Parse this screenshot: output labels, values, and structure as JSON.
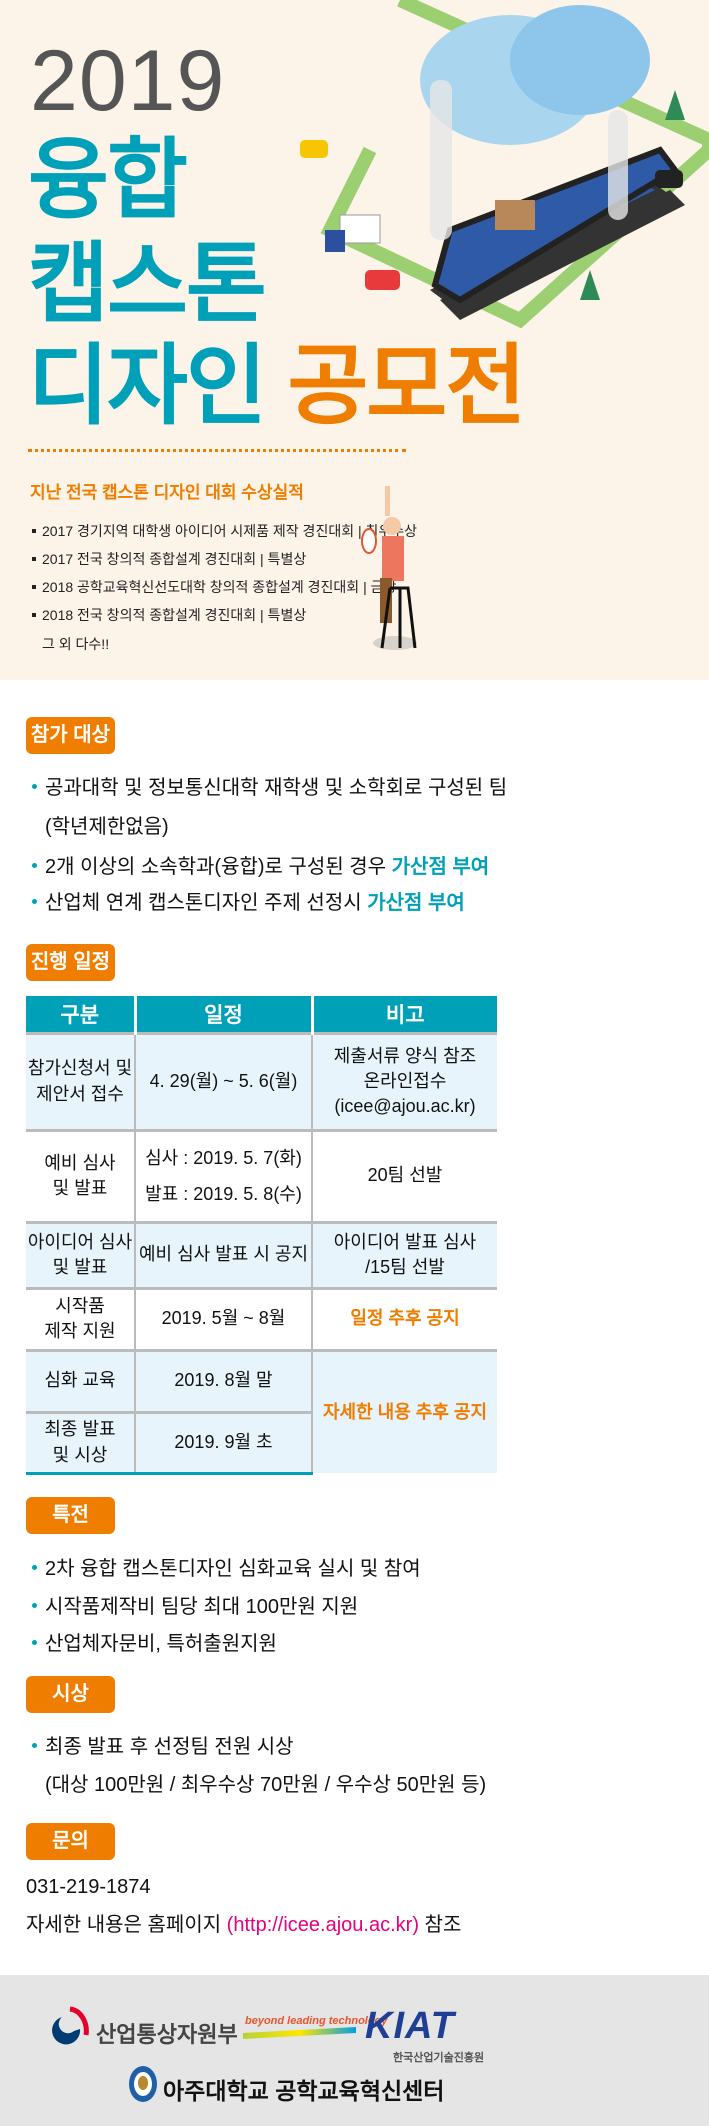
{
  "hero": {
    "year": "2019",
    "title_line1": "융합",
    "title_line2": "캡스톤",
    "title_line3_teal": "디자인",
    "title_line3_orange": "공모전"
  },
  "awards": {
    "heading": "지난 전국 캡스톤 디자인 대회 수상실적",
    "items": [
      "2017 경기지역 대학생 아이디어 시제품 제작 경진대회 | 최우수상",
      "2017 전국 창의적 종합설계 경진대회 | 특별상",
      "2018 공학교육혁신선도대학 창의적 종합설계 경진대회 | 금상",
      "2018 전국 창의적 종합설계 경진대회 | 특별상"
    ],
    "more": "그 외 다수!!"
  },
  "eligibility": {
    "badge": "참가 대상",
    "item1": "공과대학 및 정보통신대학 재학생 및 소학회로 구성된 팀",
    "item1_cont": "(학년제한없음)",
    "item2": "2개 이상의 소속학과(융합)로 구성된 경우 ",
    "item2_highlight": "가산점 부여",
    "item3": "산업체 연계 캡스톤디자인 주제 선정시 ",
    "item3_highlight": "가산점 부여"
  },
  "schedule": {
    "badge": "진행 일정",
    "headers": [
      "구분",
      "일정",
      "비고"
    ],
    "rows": [
      {
        "category": "참가신청서 및\n제안서 접수",
        "date": "4. 29(월) ~ 5. 6(월)",
        "note": "제출서류 양식 참조\n온라인접수\n(icee@ajou.ac.kr)"
      },
      {
        "category": "예비 심사\n및 발표",
        "date": "심사 : 2019. 5. 7(화)\n발표 : 2019. 5. 8(수)",
        "note": "20팀 선발"
      },
      {
        "category": "아이디어 심사\n및 발표",
        "date": "예비 심사 발표 시 공지",
        "note": "아이디어 발표 심사\n/15팀 선발"
      },
      {
        "category": "시작품\n제작 지원",
        "date": "2019. 5월 ~ 8월",
        "note": "일정 추후 공지"
      },
      {
        "category": "심화 교육",
        "date": "2019. 8월 말",
        "note": "자세한 내용 추후 공지"
      },
      {
        "category": "최종 발표\n및 시상",
        "date": "2019. 9월 초"
      }
    ]
  },
  "benefits": {
    "badge": "특전",
    "items": [
      "2차 융합 캡스톤디자인 심화교육 실시 및 참여",
      "시작품제작비 팀당 최대 100만원 지원",
      "산업체자문비, 특허출원지원"
    ]
  },
  "prizes": {
    "badge": "시상",
    "item": "최종 발표 후 선정팀 전원 시상",
    "item_cont": "(대상 100만원 / 최우수상 70만원 / 우수상 50만원 등)"
  },
  "contact": {
    "badge": "문의",
    "phone": "031-219-1874",
    "text_before": "자세한 내용은 홈페이지 ",
    "url": "(http://icee.ajou.ac.kr)",
    "text_after": " 참조"
  },
  "footer": {
    "motie": "산업통상자원부",
    "slogan": "beyond leading technology",
    "kiat": "KIAT",
    "kiat_sub": "한국산업기술진흥원",
    "ajou": "아주대학교 공학교육혁신센터"
  },
  "colors": {
    "teal": "#00a0b8",
    "orange": "#ef7d00",
    "hero_bg": "#fdf4e9",
    "link": "#e4007f"
  }
}
